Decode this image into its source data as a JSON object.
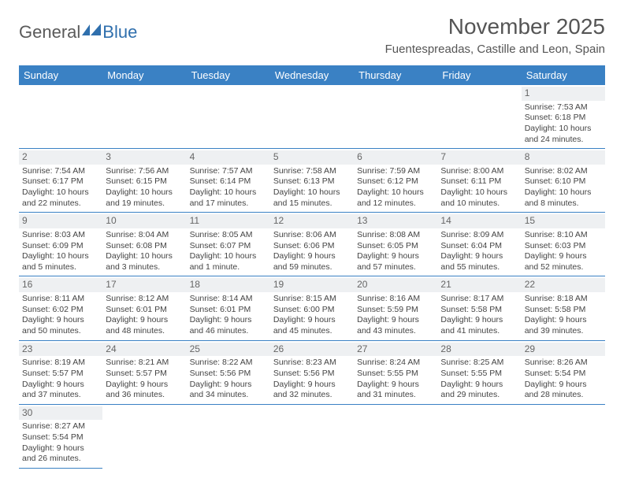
{
  "logo": {
    "part1": "General",
    "part2": "Blue"
  },
  "title": "November 2025",
  "location": "Fuentespreadas, Castille and Leon, Spain",
  "colors": {
    "header_bg": "#3a81c4",
    "header_text": "#ffffff",
    "daynum_bg": "#eef0f2",
    "border": "#3a81c4",
    "logo_blue": "#2f6fad",
    "logo_gray": "#5a5a5a"
  },
  "weekdays": [
    "Sunday",
    "Monday",
    "Tuesday",
    "Wednesday",
    "Thursday",
    "Friday",
    "Saturday"
  ],
  "days": {
    "1": {
      "sunrise": "7:53 AM",
      "sunset": "6:18 PM",
      "daylight": "10 hours and 24 minutes."
    },
    "2": {
      "sunrise": "7:54 AM",
      "sunset": "6:17 PM",
      "daylight": "10 hours and 22 minutes."
    },
    "3": {
      "sunrise": "7:56 AM",
      "sunset": "6:15 PM",
      "daylight": "10 hours and 19 minutes."
    },
    "4": {
      "sunrise": "7:57 AM",
      "sunset": "6:14 PM",
      "daylight": "10 hours and 17 minutes."
    },
    "5": {
      "sunrise": "7:58 AM",
      "sunset": "6:13 PM",
      "daylight": "10 hours and 15 minutes."
    },
    "6": {
      "sunrise": "7:59 AM",
      "sunset": "6:12 PM",
      "daylight": "10 hours and 12 minutes."
    },
    "7": {
      "sunrise": "8:00 AM",
      "sunset": "6:11 PM",
      "daylight": "10 hours and 10 minutes."
    },
    "8": {
      "sunrise": "8:02 AM",
      "sunset": "6:10 PM",
      "daylight": "10 hours and 8 minutes."
    },
    "9": {
      "sunrise": "8:03 AM",
      "sunset": "6:09 PM",
      "daylight": "10 hours and 5 minutes."
    },
    "10": {
      "sunrise": "8:04 AM",
      "sunset": "6:08 PM",
      "daylight": "10 hours and 3 minutes."
    },
    "11": {
      "sunrise": "8:05 AM",
      "sunset": "6:07 PM",
      "daylight": "10 hours and 1 minute."
    },
    "12": {
      "sunrise": "8:06 AM",
      "sunset": "6:06 PM",
      "daylight": "9 hours and 59 minutes."
    },
    "13": {
      "sunrise": "8:08 AM",
      "sunset": "6:05 PM",
      "daylight": "9 hours and 57 minutes."
    },
    "14": {
      "sunrise": "8:09 AM",
      "sunset": "6:04 PM",
      "daylight": "9 hours and 55 minutes."
    },
    "15": {
      "sunrise": "8:10 AM",
      "sunset": "6:03 PM",
      "daylight": "9 hours and 52 minutes."
    },
    "16": {
      "sunrise": "8:11 AM",
      "sunset": "6:02 PM",
      "daylight": "9 hours and 50 minutes."
    },
    "17": {
      "sunrise": "8:12 AM",
      "sunset": "6:01 PM",
      "daylight": "9 hours and 48 minutes."
    },
    "18": {
      "sunrise": "8:14 AM",
      "sunset": "6:01 PM",
      "daylight": "9 hours and 46 minutes."
    },
    "19": {
      "sunrise": "8:15 AM",
      "sunset": "6:00 PM",
      "daylight": "9 hours and 45 minutes."
    },
    "20": {
      "sunrise": "8:16 AM",
      "sunset": "5:59 PM",
      "daylight": "9 hours and 43 minutes."
    },
    "21": {
      "sunrise": "8:17 AM",
      "sunset": "5:58 PM",
      "daylight": "9 hours and 41 minutes."
    },
    "22": {
      "sunrise": "8:18 AM",
      "sunset": "5:58 PM",
      "daylight": "9 hours and 39 minutes."
    },
    "23": {
      "sunrise": "8:19 AM",
      "sunset": "5:57 PM",
      "daylight": "9 hours and 37 minutes."
    },
    "24": {
      "sunrise": "8:21 AM",
      "sunset": "5:57 PM",
      "daylight": "9 hours and 36 minutes."
    },
    "25": {
      "sunrise": "8:22 AM",
      "sunset": "5:56 PM",
      "daylight": "9 hours and 34 minutes."
    },
    "26": {
      "sunrise": "8:23 AM",
      "sunset": "5:56 PM",
      "daylight": "9 hours and 32 minutes."
    },
    "27": {
      "sunrise": "8:24 AM",
      "sunset": "5:55 PM",
      "daylight": "9 hours and 31 minutes."
    },
    "28": {
      "sunrise": "8:25 AM",
      "sunset": "5:55 PM",
      "daylight": "9 hours and 29 minutes."
    },
    "29": {
      "sunrise": "8:26 AM",
      "sunset": "5:54 PM",
      "daylight": "9 hours and 28 minutes."
    },
    "30": {
      "sunrise": "8:27 AM",
      "sunset": "5:54 PM",
      "daylight": "9 hours and 26 minutes."
    }
  },
  "labels": {
    "sunrise": "Sunrise: ",
    "sunset": "Sunset: ",
    "daylight": "Daylight: "
  },
  "layout": [
    [
      null,
      null,
      null,
      null,
      null,
      null,
      "1"
    ],
    [
      "2",
      "3",
      "4",
      "5",
      "6",
      "7",
      "8"
    ],
    [
      "9",
      "10",
      "11",
      "12",
      "13",
      "14",
      "15"
    ],
    [
      "16",
      "17",
      "18",
      "19",
      "20",
      "21",
      "22"
    ],
    [
      "23",
      "24",
      "25",
      "26",
      "27",
      "28",
      "29"
    ],
    [
      "30",
      null,
      null,
      null,
      null,
      null,
      null
    ]
  ]
}
